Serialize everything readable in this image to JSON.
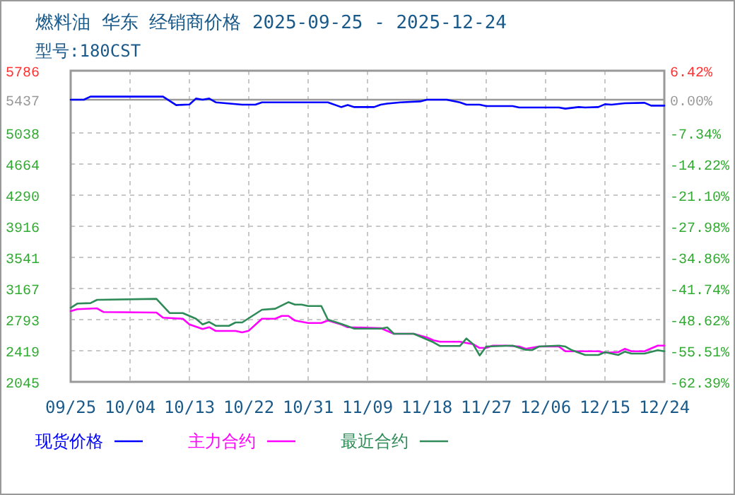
{
  "chart_data": {
    "type": "line",
    "title": "燃料油 华东 经销商价格 2025-09-25 - 2025-12-24",
    "subtitle": "型号:180CST",
    "xlim": [
      "2025-09-25",
      "2025-12-24"
    ],
    "xticks": [
      {
        "value": "2025-09-25",
        "label": "09/25"
      },
      {
        "value": "2025-10-04",
        "label": "10/04"
      },
      {
        "value": "2025-10-13",
        "label": "10/13"
      },
      {
        "value": "2025-10-22",
        "label": "10/22"
      },
      {
        "value": "2025-10-31",
        "label": "10/31"
      },
      {
        "value": "2025-11-09",
        "label": "11/09"
      },
      {
        "value": "2025-11-18",
        "label": "11/18"
      },
      {
        "value": "2025-11-27",
        "label": "11/27"
      },
      {
        "value": "2025-12-06",
        "label": "12/06"
      },
      {
        "value": "2025-12-15",
        "label": "12/15"
      },
      {
        "value": "2025-12-24",
        "label": "12/24"
      }
    ],
    "ylim": [
      2045,
      5786
    ],
    "yticks": [
      2045,
      2419,
      2793,
      3167,
      3541,
      3916,
      4290,
      4664,
      5038,
      5437,
      5786
    ],
    "y2lim": [
      -62.39,
      6.42
    ],
    "y2ticks": [
      {
        "value": -62.39,
        "label": "-62.39%"
      },
      {
        "value": -55.51,
        "label": "-55.51%"
      },
      {
        "value": -48.62,
        "label": "-48.62%"
      },
      {
        "value": -41.74,
        "label": "-41.74%"
      },
      {
        "value": -34.86,
        "label": "-34.86%"
      },
      {
        "value": -27.98,
        "label": "-27.98%"
      },
      {
        "value": -21.1,
        "label": "-21.10%"
      },
      {
        "value": -14.22,
        "label": "-14.22%"
      },
      {
        "value": -7.34,
        "label": "-7.34%"
      },
      {
        "value": 0,
        "label": "0.00%"
      },
      {
        "value": 6.42,
        "label": "6.42%"
      }
    ],
    "ref_lines": [
      {
        "axis": "y",
        "value": 5437,
        "color": "#999999"
      }
    ],
    "grid": true,
    "legend": "bottom",
    "line_style": "solid",
    "series": [
      {
        "name": "现货价格",
        "color": "#0000ff",
        "x": [
          "2025-09-25",
          "2025-09-27",
          "2025-09-28",
          "2025-10-09",
          "2025-10-11",
          "2025-10-13",
          "2025-10-14",
          "2025-10-15",
          "2025-10-16",
          "2025-10-17",
          "2025-10-21",
          "2025-10-23",
          "2025-10-24",
          "2025-11-03",
          "2025-11-05",
          "2025-11-06",
          "2025-11-07",
          "2025-11-10",
          "2025-11-11",
          "2025-11-12",
          "2025-11-14",
          "2025-11-17",
          "2025-11-18",
          "2025-11-21",
          "2025-11-23",
          "2025-11-24",
          "2025-11-26",
          "2025-11-27",
          "2025-12-01",
          "2025-12-02",
          "2025-12-08",
          "2025-12-09",
          "2025-12-11",
          "2025-12-12",
          "2025-12-14",
          "2025-12-15",
          "2025-12-16",
          "2025-12-18",
          "2025-12-21",
          "2025-12-22",
          "2025-12-24"
        ],
        "values": [
          5437,
          5437,
          5475,
          5475,
          5373,
          5380,
          5451,
          5437,
          5451,
          5406,
          5378,
          5378,
          5406,
          5406,
          5349,
          5373,
          5349,
          5349,
          5378,
          5390,
          5406,
          5417,
          5437,
          5437,
          5406,
          5378,
          5378,
          5361,
          5361,
          5344,
          5344,
          5330,
          5349,
          5344,
          5349,
          5383,
          5378,
          5395,
          5400,
          5366,
          5366
        ]
      },
      {
        "name": "主力合约",
        "color": "#ff00ff",
        "x": [
          "2025-09-25",
          "2025-09-26",
          "2025-09-29",
          "2025-09-30",
          "2025-10-08",
          "2025-10-09",
          "2025-10-12",
          "2025-10-13",
          "2025-10-15",
          "2025-10-16",
          "2025-10-17",
          "2025-10-20",
          "2025-10-21",
          "2025-10-22",
          "2025-10-24",
          "2025-10-26",
          "2025-10-27",
          "2025-10-28",
          "2025-10-29",
          "2025-10-31",
          "2025-11-02",
          "2025-11-03",
          "2025-11-05",
          "2025-11-06",
          "2025-11-11",
          "2025-11-13",
          "2025-11-16",
          "2025-11-18",
          "2025-11-19",
          "2025-11-20",
          "2025-11-23",
          "2025-11-25",
          "2025-11-26",
          "2025-11-27",
          "2025-11-28",
          "2025-11-30",
          "2025-12-02",
          "2025-12-03",
          "2025-12-05",
          "2025-12-08",
          "2025-12-09",
          "2025-12-14",
          "2025-12-15",
          "2025-12-17",
          "2025-12-18",
          "2025-12-19",
          "2025-12-21",
          "2025-12-23",
          "2025-12-24"
        ],
        "values": [
          2895,
          2918,
          2929,
          2884,
          2878,
          2816,
          2804,
          2736,
          2680,
          2702,
          2657,
          2657,
          2640,
          2660,
          2804,
          2804,
          2838,
          2838,
          2782,
          2753,
          2753,
          2782,
          2736,
          2702,
          2691,
          2623,
          2623,
          2578,
          2544,
          2527,
          2527,
          2498,
          2453,
          2453,
          2481,
          2481,
          2470,
          2442,
          2470,
          2470,
          2413,
          2413,
          2396,
          2402,
          2442,
          2413,
          2413,
          2481,
          2481
        ]
      },
      {
        "name": "最近合约",
        "color": "#2e8b57",
        "x": [
          "2025-09-25",
          "2025-09-26",
          "2025-09-28",
          "2025-09-29",
          "2025-10-08",
          "2025-10-10",
          "2025-10-12",
          "2025-10-14",
          "2025-10-15",
          "2025-10-16",
          "2025-10-17",
          "2025-10-19",
          "2025-10-20",
          "2025-10-21",
          "2025-10-24",
          "2025-10-26",
          "2025-10-28",
          "2025-10-29",
          "2025-10-30",
          "2025-10-31",
          "2025-11-02",
          "2025-11-03",
          "2025-11-05",
          "2025-11-07",
          "2025-11-11",
          "2025-11-12",
          "2025-11-13",
          "2025-11-16",
          "2025-11-19",
          "2025-11-20",
          "2025-11-23",
          "2025-11-24",
          "2025-11-25",
          "2025-11-26",
          "2025-11-27",
          "2025-12-01",
          "2025-12-03",
          "2025-12-04",
          "2025-12-05",
          "2025-12-08",
          "2025-12-09",
          "2025-12-10",
          "2025-12-12",
          "2025-12-14",
          "2025-12-15",
          "2025-12-17",
          "2025-12-18",
          "2025-12-19",
          "2025-12-21",
          "2025-12-23",
          "2025-12-24"
        ],
        "values": [
          2935,
          2986,
          2992,
          3031,
          3043,
          2872,
          2872,
          2804,
          2736,
          2765,
          2719,
          2719,
          2759,
          2759,
          2912,
          2924,
          3003,
          2974,
          2974,
          2957,
          2957,
          2793,
          2742,
          2685,
          2685,
          2700,
          2623,
          2623,
          2521,
          2476,
          2476,
          2566,
          2498,
          2362,
          2470,
          2481,
          2430,
          2430,
          2470,
          2481,
          2470,
          2425,
          2368,
          2368,
          2402,
          2368,
          2408,
          2385,
          2385,
          2425,
          2413
        ]
      }
    ]
  }
}
